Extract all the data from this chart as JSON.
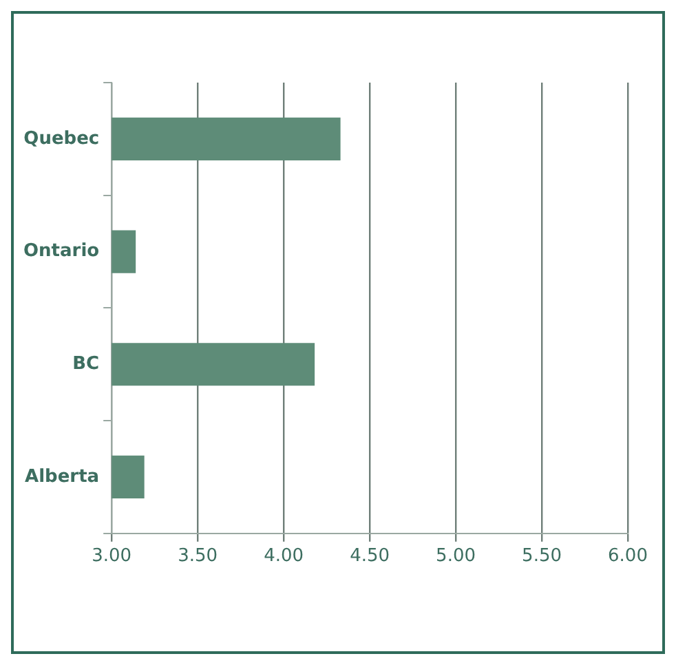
{
  "chart_data": {
    "type": "bar",
    "orientation": "horizontal",
    "categories": [
      "Quebec",
      "Ontario",
      "BC",
      "Alberta"
    ],
    "series": [
      {
        "color": "#5e8c78",
        "values": [
          4.33,
          3.14,
          4.18,
          3.19
        ]
      }
    ],
    "xlim": [
      3,
      6
    ],
    "xticks": [
      {
        "value": 3,
        "label": "3.00"
      },
      {
        "value": 3.5,
        "label": "3.50"
      },
      {
        "value": 4,
        "label": "4.00"
      },
      {
        "value": 4.5,
        "label": "4.50"
      },
      {
        "value": 5,
        "label": "5.00"
      },
      {
        "value": 5.5,
        "label": "5.50"
      },
      {
        "value": 6,
        "label": "6.00"
      }
    ],
    "grid": "x",
    "legend": false
  }
}
